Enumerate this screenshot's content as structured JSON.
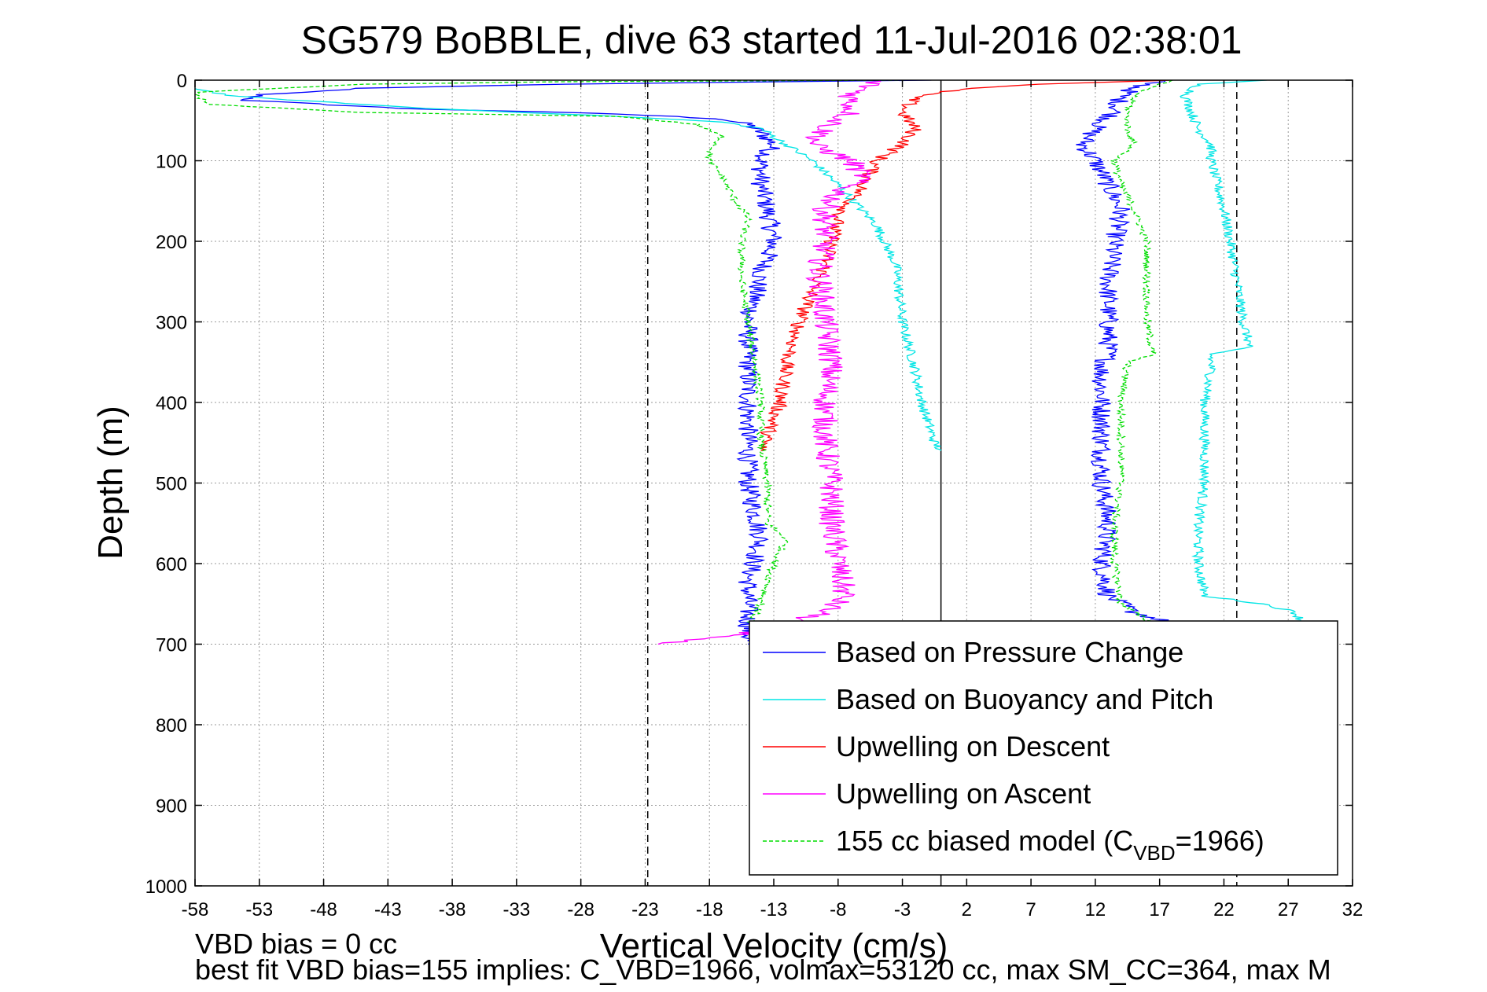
{
  "chart_data": {
    "type": "line",
    "title": "SG579 BoBBLE, dive 63 started 11-Jul-2016 02:38:01",
    "xlabel": "Vertical Velocity (cm/s)",
    "ylabel": "Depth (m)",
    "xlim": [
      -58,
      32
    ],
    "ylim": [
      0,
      1000
    ],
    "y_reversed": true,
    "grid": true,
    "xticks": [
      -58,
      -53,
      -48,
      -43,
      -38,
      -33,
      -28,
      -23,
      -18,
      -13,
      -8,
      -3,
      2,
      7,
      12,
      17,
      22,
      27,
      32
    ],
    "yticks": [
      0,
      100,
      200,
      300,
      400,
      500,
      600,
      700,
      800,
      900,
      1000
    ],
    "legend_position": "bottom-right",
    "reference_lines": [
      {
        "x": -22.8,
        "style": "dashed",
        "color": "#000000"
      },
      {
        "x": 0,
        "style": "solid",
        "color": "#000000"
      },
      {
        "x": 23,
        "style": "dashed",
        "color": "#000000"
      }
    ],
    "series": [
      {
        "name": "Based on Pressure Change",
        "color": "#0000ff",
        "style": "solid",
        "noise": 0.8,
        "segments": [
          [
            [
              -1,
              0
            ],
            [
              -30,
              5
            ],
            [
              -45,
              10
            ],
            [
              -53,
              18
            ],
            [
              -54,
              25
            ],
            [
              -42,
              35
            ],
            [
              -25,
              42
            ],
            [
              -17,
              48
            ],
            [
              -15,
              55
            ],
            [
              -14,
              65
            ],
            [
              -13,
              80
            ],
            [
              -14,
              100
            ],
            [
              -14,
              130
            ],
            [
              -13.5,
              160
            ],
            [
              -13,
              200
            ],
            [
              -14,
              240
            ],
            [
              -15,
              300
            ],
            [
              -15,
              400
            ],
            [
              -15,
              500
            ],
            [
              -14,
              570
            ],
            [
              -15,
              620
            ],
            [
              -15,
              700
            ]
          ],
          [
            [
              17,
              0
            ],
            [
              15,
              10
            ],
            [
              14,
              20
            ],
            [
              13.5,
              40
            ],
            [
              12,
              60
            ],
            [
              11,
              80
            ],
            [
              12,
              100
            ],
            [
              13,
              130
            ],
            [
              14,
              160
            ],
            [
              13.5,
              200
            ],
            [
              13,
              250
            ],
            [
              13,
              300
            ],
            [
              13,
              340
            ],
            [
              12.5,
              360
            ],
            [
              12.5,
              400
            ],
            [
              12.5,
              500
            ],
            [
              13,
              550
            ],
            [
              12.5,
              600
            ],
            [
              13,
              640
            ],
            [
              15,
              660
            ],
            [
              17,
              670
            ],
            [
              18,
              680
            ],
            [
              20,
              690
            ]
          ]
        ]
      },
      {
        "name": "Based on Buoyancy and Pitch",
        "color": "#00e5e5",
        "style": "solid",
        "noise": 0.4,
        "segments": [
          [
            [
              -58,
              10
            ],
            [
              -55,
              20
            ],
            [
              -40,
              35
            ],
            [
              -25,
              45
            ],
            [
              -17,
              52
            ],
            [
              -14,
              60
            ],
            [
              -12,
              80
            ],
            [
              -10,
              100
            ],
            [
              -8,
              130
            ],
            [
              -5,
              180
            ],
            [
              -3.5,
              230
            ],
            [
              -3,
              300
            ],
            [
              -2,
              360
            ],
            [
              -1.5,
              400
            ],
            [
              -0.5,
              450
            ],
            [
              0,
              460
            ]
          ],
          [
            [
              25,
              0
            ],
            [
              20,
              5
            ],
            [
              19,
              20
            ],
            [
              19.5,
              40
            ],
            [
              20,
              60
            ],
            [
              21,
              80
            ],
            [
              21,
              100
            ],
            [
              21.5,
              130
            ],
            [
              22,
              160
            ],
            [
              22.5,
              200
            ],
            [
              23,
              250
            ],
            [
              23.5,
              300
            ],
            [
              24,
              330
            ],
            [
              21,
              340
            ],
            [
              21,
              360
            ],
            [
              20.5,
              400
            ],
            [
              20.5,
              450
            ],
            [
              20.5,
              500
            ],
            [
              20,
              550
            ],
            [
              20,
              600
            ],
            [
              20.5,
              640
            ],
            [
              25,
              650
            ],
            [
              27.5,
              660
            ],
            [
              28,
              670
            ]
          ]
        ]
      },
      {
        "name": "Upwelling on Descent",
        "color": "#ff0000",
        "style": "solid",
        "noise": 0.6,
        "segments": [
          [
            [
              18,
              0
            ],
            [
              8,
              5
            ],
            [
              2,
              10
            ],
            [
              -2,
              20
            ],
            [
              -3,
              40
            ],
            [
              -2,
              60
            ],
            [
              -3,
              80
            ],
            [
              -5,
              100
            ],
            [
              -6,
              130
            ],
            [
              -7,
              150
            ],
            [
              -8,
              170
            ],
            [
              -8.5,
              200
            ],
            [
              -9,
              230
            ],
            [
              -10,
              260
            ],
            [
              -11,
              300
            ],
            [
              -12,
              350
            ],
            [
              -12.5,
              400
            ],
            [
              -13.5,
              440
            ],
            [
              -14,
              460
            ]
          ]
        ]
      },
      {
        "name": "Upwelling on Ascent",
        "color": "#ff00ff",
        "style": "solid",
        "noise": 1.0,
        "segments": [
          [
            [
              -5,
              0
            ],
            [
              -7,
              20
            ],
            [
              -7,
              40
            ],
            [
              -9,
              60
            ],
            [
              -10,
              80
            ],
            [
              -7,
              100
            ],
            [
              -6,
              120
            ],
            [
              -8,
              140
            ],
            [
              -9,
              160
            ],
            [
              -9,
              200
            ],
            [
              -9.5,
              240
            ],
            [
              -9,
              300
            ],
            [
              -8.5,
              350
            ],
            [
              -9,
              400
            ],
            [
              -9,
              450
            ],
            [
              -8.5,
              500
            ],
            [
              -8.5,
              550
            ],
            [
              -8,
              600
            ],
            [
              -7.5,
              640
            ],
            [
              -9,
              660
            ],
            [
              -11,
              670
            ],
            [
              -13,
              680
            ],
            [
              -16,
              690
            ],
            [
              -20,
              695
            ],
            [
              -22,
              700
            ]
          ]
        ]
      },
      {
        "name": "155 cc biased model (C",
        "name_sub": "VBD",
        "name_tail": "=1966)",
        "color": "#00dd00",
        "style": "dashed",
        "noise": 0.3,
        "segments": [
          [
            [
              -3,
              0
            ],
            [
              -30,
              2
            ],
            [
              -45,
              5
            ],
            [
              -58,
              15
            ],
            [
              -57,
              30
            ],
            [
              -45,
              40
            ],
            [
              -25,
              45
            ],
            [
              -19,
              55
            ],
            [
              -17,
              70
            ],
            [
              -18,
              90
            ],
            [
              -18,
              100
            ],
            [
              -17,
              120
            ],
            [
              -16,
              150
            ],
            [
              -15,
              170
            ],
            [
              -15.5,
              200
            ],
            [
              -15.5,
              250
            ],
            [
              -15,
              300
            ],
            [
              -14.5,
              350
            ],
            [
              -14,
              400
            ],
            [
              -14,
              450
            ],
            [
              -13.5,
              500
            ],
            [
              -13.5,
              550
            ],
            [
              -12,
              570
            ],
            [
              -13,
              600
            ],
            [
              -14,
              650
            ],
            [
              -15,
              680
            ]
          ],
          [
            [
              18,
              0
            ],
            [
              16,
              10
            ],
            [
              15,
              20
            ],
            [
              14.5,
              40
            ],
            [
              14.5,
              60
            ],
            [
              15,
              80
            ],
            [
              13.5,
              100
            ],
            [
              14,
              130
            ],
            [
              15,
              160
            ],
            [
              16,
              200
            ],
            [
              16,
              250
            ],
            [
              16,
              300
            ],
            [
              16.5,
              340
            ],
            [
              14.5,
              350
            ],
            [
              14,
              400
            ],
            [
              14,
              450
            ],
            [
              14,
              500
            ],
            [
              13.5,
              550
            ],
            [
              13.5,
              600
            ],
            [
              14,
              650
            ],
            [
              16,
              670
            ],
            [
              18,
              680
            ]
          ]
        ]
      }
    ]
  },
  "footer": {
    "line1": "VBD bias = 0 cc",
    "line2": "best fit VBD bias=155 implies: C_VBD=1966, volmax=53120 cc, max SM_CC=364, max M"
  }
}
